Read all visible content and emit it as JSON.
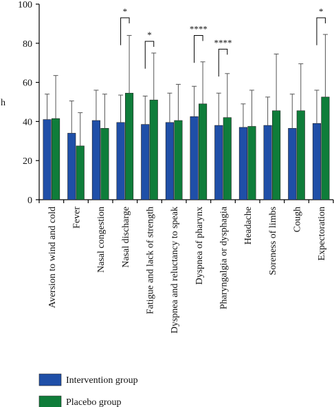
{
  "chart_data": {
    "type": "bar",
    "ylabel": "h",
    "ylim": [
      0,
      100
    ],
    "yticks": [
      0,
      20,
      40,
      60,
      80,
      100
    ],
    "categories": [
      "Aversion to wind and cold",
      "Fever",
      "Nasal congestion",
      "Nasal discharge",
      "Fatigue and lack of strength",
      "Dyspnea and reluctancy to speak",
      "Dyspnea of pharynx",
      "Pharyngalgia or dysphagia",
      "Headache",
      "Soreness of limbs",
      "Cough",
      "Expectoration"
    ],
    "series": [
      {
        "name": "Intervention group",
        "color": "#1f4fa8",
        "values": [
          41,
          34,
          40.5,
          39.5,
          38.5,
          39.5,
          42.5,
          38,
          37,
          38,
          36.5,
          39
        ],
        "error": [
          13,
          16.5,
          15.5,
          14,
          14.5,
          15,
          15.5,
          16.5,
          12,
          14.5,
          17.5,
          17
        ]
      },
      {
        "name": "Placebo group",
        "color": "#0f7d3a",
        "values": [
          41.5,
          27.5,
          36.5,
          54.5,
          51,
          40.5,
          49,
          42,
          37.5,
          45.5,
          45.5,
          52.5
        ],
        "error": [
          22,
          17,
          17.5,
          29.5,
          24,
          18.5,
          21.5,
          22.5,
          18.5,
          29,
          24,
          32
        ]
      }
    ],
    "significance": [
      {
        "category_index": 3,
        "label": "*",
        "y": 93
      },
      {
        "category_index": 4,
        "label": "*",
        "y": 81
      },
      {
        "category_index": 6,
        "label": "****",
        "y": 84
      },
      {
        "category_index": 7,
        "label": "****",
        "y": 77
      },
      {
        "category_index": 11,
        "label": "*",
        "y": 93
      }
    ],
    "legend_position": "bottom-left"
  }
}
